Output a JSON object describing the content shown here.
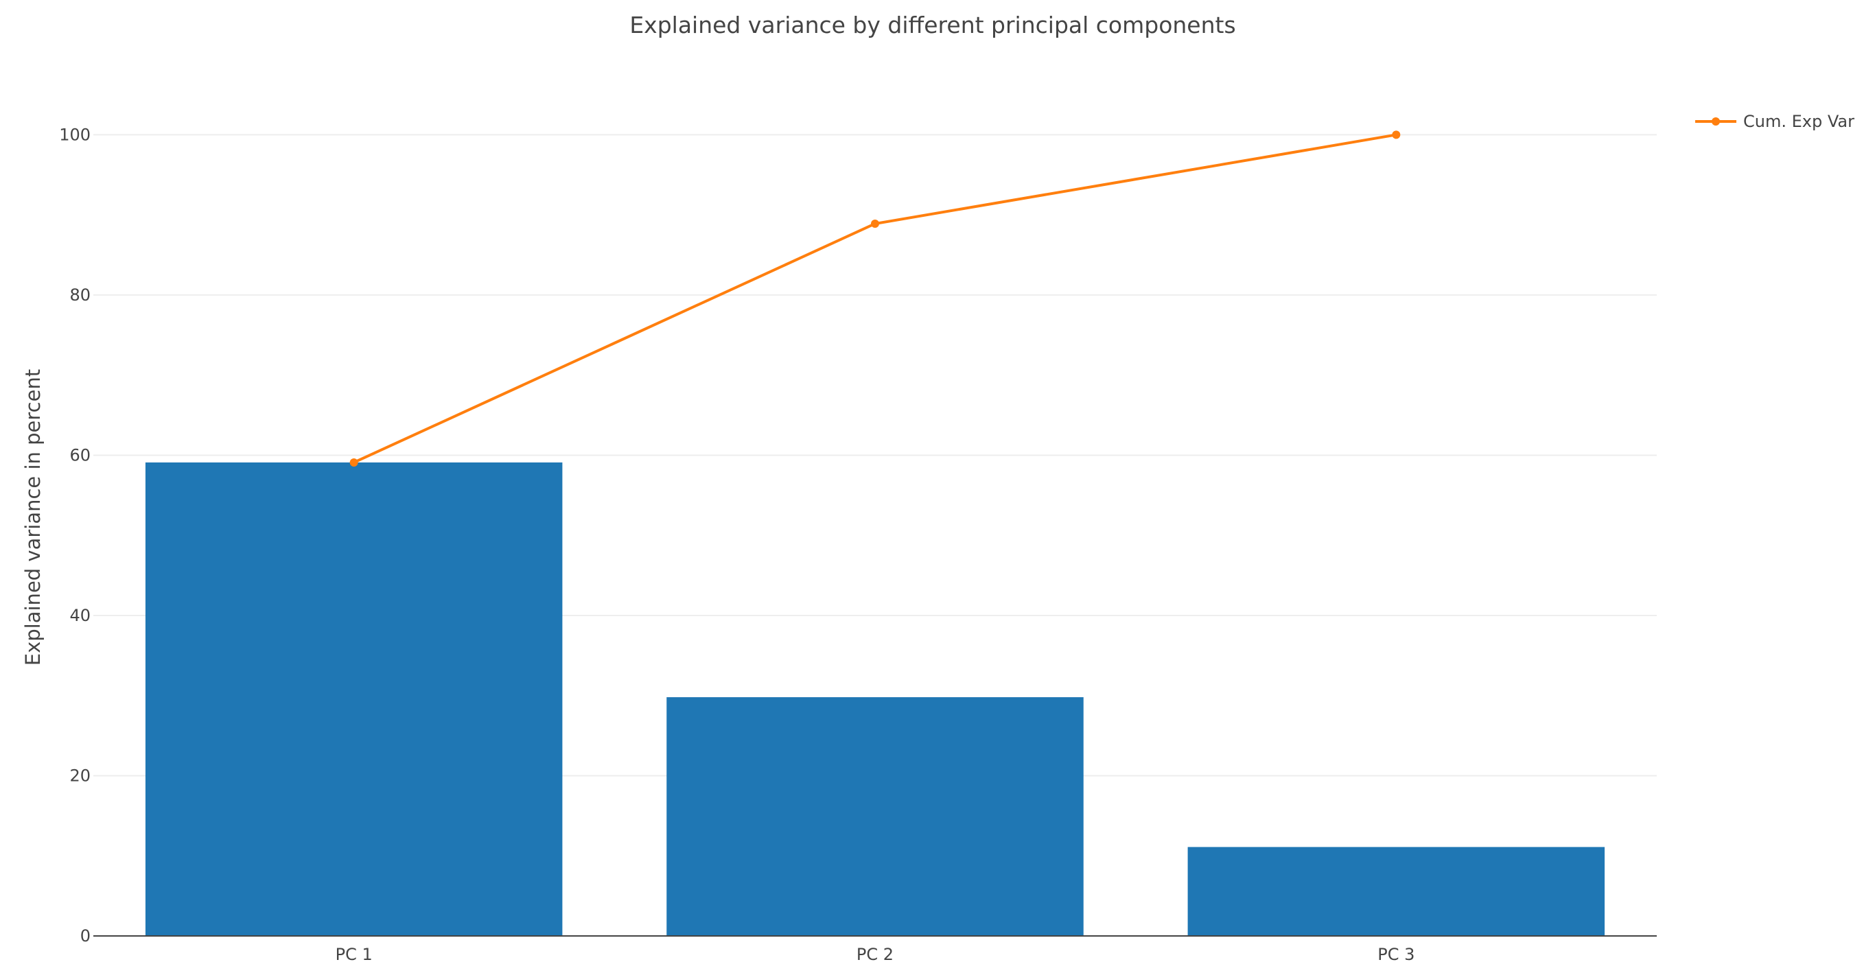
{
  "chart_data": {
    "type": "bar",
    "title": "Explained variance by different principal components",
    "xlabel": "",
    "ylabel": "Explained variance in percent",
    "categories": [
      "PC 1",
      "PC 2",
      "PC 3"
    ],
    "ylim": [
      0,
      108
    ],
    "yticks": [
      0,
      20,
      40,
      60,
      80,
      100
    ],
    "grid": true,
    "legend_position": "top-right",
    "series": [
      {
        "values": [
          59.1,
          29.8,
          11.1
        ],
        "type": "bar",
        "color": "#1f77b4"
      },
      {
        "name": "Cum. Exp Var",
        "values": [
          59.1,
          88.9,
          100.0
        ],
        "type": "line",
        "color": "#ff7f0e"
      }
    ]
  }
}
